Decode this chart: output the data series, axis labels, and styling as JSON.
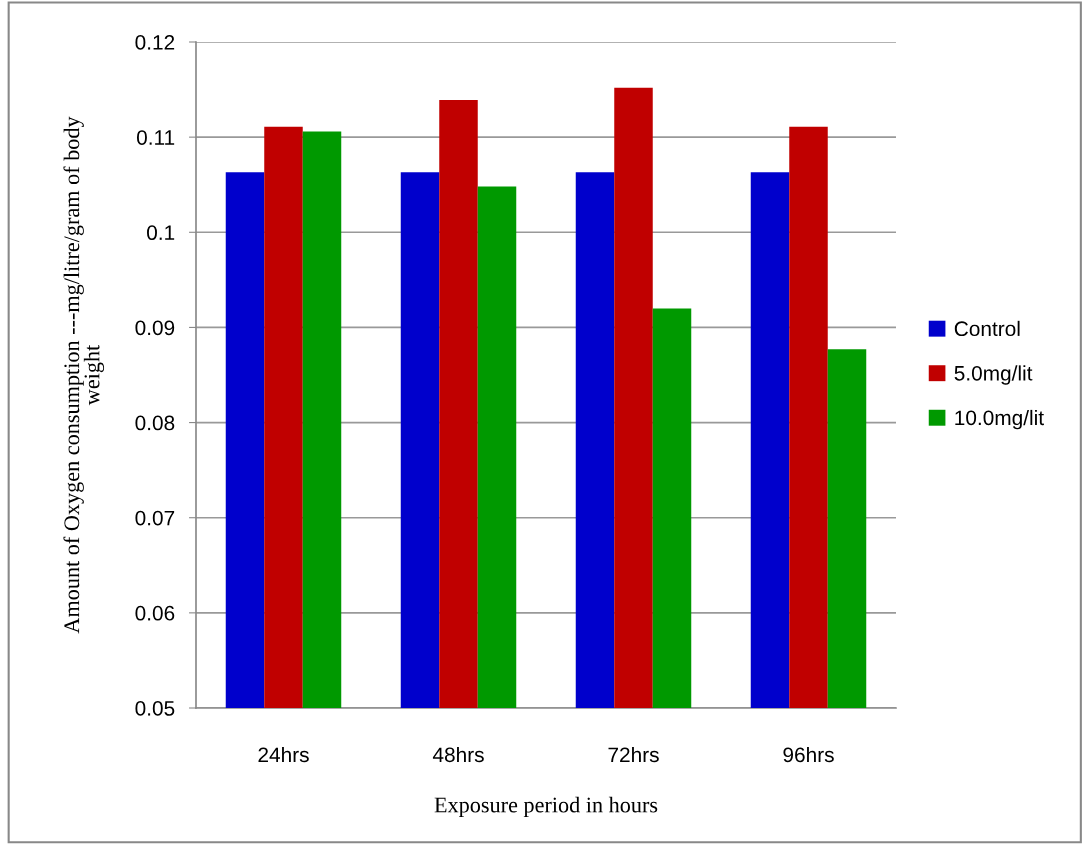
{
  "chart_data": {
    "type": "bar",
    "xlabel": "Exposure period in hours",
    "ylabel": "Amount of Oxygen consumption ---mg/litre/gram of body\nweight",
    "categories": [
      "24hrs",
      "48hrs",
      "72hrs",
      "96hrs"
    ],
    "series": [
      {
        "name": "Control",
        "color": "#0000cc",
        "values": [
          0.1063,
          0.1063,
          0.1063,
          0.1063
        ]
      },
      {
        "name": "5.0mg/lit",
        "color": "#c00000",
        "values": [
          0.1111,
          0.1139,
          0.1152,
          0.1111
        ]
      },
      {
        "name": "10.0mg/lit",
        "color": "#009900",
        "values": [
          0.1106,
          0.1048,
          0.092,
          0.0877
        ]
      }
    ],
    "ylim": [
      0.05,
      0.12
    ],
    "yticks": [
      0.05,
      0.06,
      0.07,
      0.08,
      0.09,
      0.1,
      0.11,
      0.12
    ],
    "grid": "y",
    "legend": "right"
  }
}
